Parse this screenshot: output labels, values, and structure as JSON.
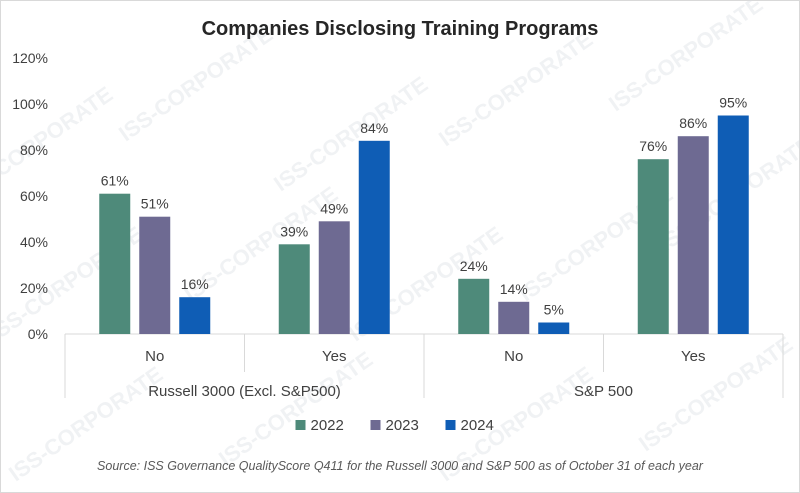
{
  "chart_data": {
    "type": "bar",
    "title": "Companies Disclosing Training Programs",
    "groups": [
      "Russell 3000 (Excl. S&P500)",
      "S&P 500"
    ],
    "categories": [
      "No",
      "Yes"
    ],
    "series": [
      {
        "name": "2022",
        "color": "#4e8a7a",
        "values": [
          [
            61,
            39
          ],
          [
            24,
            76
          ]
        ],
        "labels": [
          [
            "61%",
            "39%"
          ],
          [
            "24%",
            "76%"
          ]
        ]
      },
      {
        "name": "2023",
        "color": "#6e6a92",
        "values": [
          [
            51,
            49
          ],
          [
            14,
            86
          ]
        ],
        "labels": [
          [
            "51%",
            "49%"
          ],
          [
            "14%",
            "86%"
          ]
        ]
      },
      {
        "name": "2024",
        "color": "#0f5db5",
        "values": [
          [
            16,
            84
          ],
          [
            5,
            95
          ]
        ],
        "labels": [
          [
            "16%",
            "84%"
          ],
          [
            "5%",
            "95%"
          ]
        ]
      }
    ],
    "ylim": [
      0,
      120
    ],
    "yticks": [
      0,
      20,
      40,
      60,
      80,
      100,
      120
    ],
    "ytick_labels": [
      "0%",
      "20%",
      "40%",
      "60%",
      "80%",
      "100%",
      "120%"
    ],
    "legend_position": "bottom",
    "grid": false
  },
  "source": "Source: ISS Governance QualityScore Q411 for the Russell 3000 and S&P 500 as of October 31 of each year",
  "watermark": "ISS-CORPORATE"
}
